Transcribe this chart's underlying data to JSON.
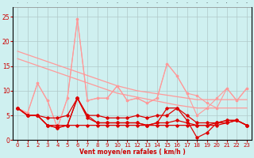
{
  "x": [
    0,
    1,
    2,
    3,
    4,
    5,
    6,
    7,
    8,
    9,
    10,
    11,
    12,
    13,
    14,
    15,
    16,
    17,
    18,
    19,
    20,
    21,
    22,
    23
  ],
  "straight1": [
    18.0,
    17.3,
    16.6,
    15.9,
    15.2,
    14.5,
    13.8,
    13.1,
    12.4,
    11.7,
    11.0,
    10.5,
    10.0,
    9.7,
    9.4,
    9.1,
    8.8,
    8.5,
    8.2,
    8.2,
    8.2,
    8.2,
    8.2,
    8.2
  ],
  "straight2": [
    16.5,
    15.8,
    15.1,
    14.4,
    13.7,
    13.0,
    12.3,
    11.6,
    10.9,
    10.2,
    9.5,
    9.1,
    8.7,
    8.3,
    7.9,
    7.5,
    7.1,
    6.8,
    6.5,
    6.5,
    6.5,
    6.5,
    6.5,
    6.5
  ],
  "pink_zigzag1": [
    6.5,
    5.5,
    11.5,
    8.0,
    2.5,
    8.5,
    24.5,
    8.0,
    8.5,
    8.5,
    11.0,
    8.0,
    8.5,
    7.5,
    8.5,
    15.5,
    13.0,
    9.5,
    9.0,
    7.5,
    6.5,
    10.5,
    8.0,
    10.5
  ],
  "pink_zigzag2": [
    6.5,
    5.5,
    11.5,
    8.0,
    2.5,
    8.5,
    24.5,
    8.0,
    8.5,
    8.5,
    11.0,
    8.0,
    8.5,
    7.5,
    8.5,
    15.5,
    13.0,
    9.5,
    5.0,
    6.5,
    8.5,
    10.5,
    8.0,
    10.5
  ],
  "dark_line1": [
    6.5,
    5.0,
    5.0,
    3.0,
    2.5,
    3.0,
    8.5,
    5.0,
    3.5,
    3.5,
    3.5,
    3.5,
    3.5,
    3.0,
    3.5,
    6.5,
    6.5,
    4.0,
    0.5,
    1.5,
    3.5,
    4.0,
    4.0,
    3.0
  ],
  "dark_line2": [
    6.5,
    5.0,
    5.0,
    3.0,
    2.5,
    3.0,
    8.5,
    4.5,
    3.5,
    3.5,
    3.5,
    3.5,
    3.5,
    3.0,
    3.5,
    3.5,
    4.0,
    3.5,
    3.0,
    3.0,
    3.5,
    3.5,
    4.0,
    3.0
  ],
  "dark_line3": [
    6.5,
    5.0,
    5.0,
    4.5,
    4.5,
    5.0,
    8.5,
    5.0,
    5.0,
    4.5,
    4.5,
    4.5,
    5.0,
    4.5,
    5.0,
    5.0,
    6.5,
    5.0,
    3.5,
    3.5,
    3.5,
    4.0,
    4.0,
    3.0
  ],
  "dark_flat": [
    6.5,
    5.0,
    5.0,
    3.0,
    3.0,
    3.0,
    3.0,
    3.0,
    3.0,
    3.0,
    3.0,
    3.0,
    3.0,
    3.0,
    3.0,
    3.0,
    3.0,
    3.0,
    3.0,
    3.0,
    3.0,
    3.5,
    4.0,
    3.0
  ],
  "background_color": "#cff0f0",
  "grid_color": "#b0c8c8",
  "line_light": "#ff9999",
  "line_dark": "#dd0000",
  "xlabel": "Vent moyen/en rafales ( km/h )",
  "ylim": [
    0,
    27
  ],
  "xlim": [
    -0.5,
    23.5
  ],
  "yticks": [
    0,
    5,
    10,
    15,
    20,
    25
  ],
  "xticks": [
    0,
    1,
    2,
    3,
    4,
    5,
    6,
    7,
    8,
    9,
    10,
    11,
    12,
    13,
    14,
    15,
    16,
    17,
    18,
    19,
    20,
    21,
    22,
    23
  ]
}
